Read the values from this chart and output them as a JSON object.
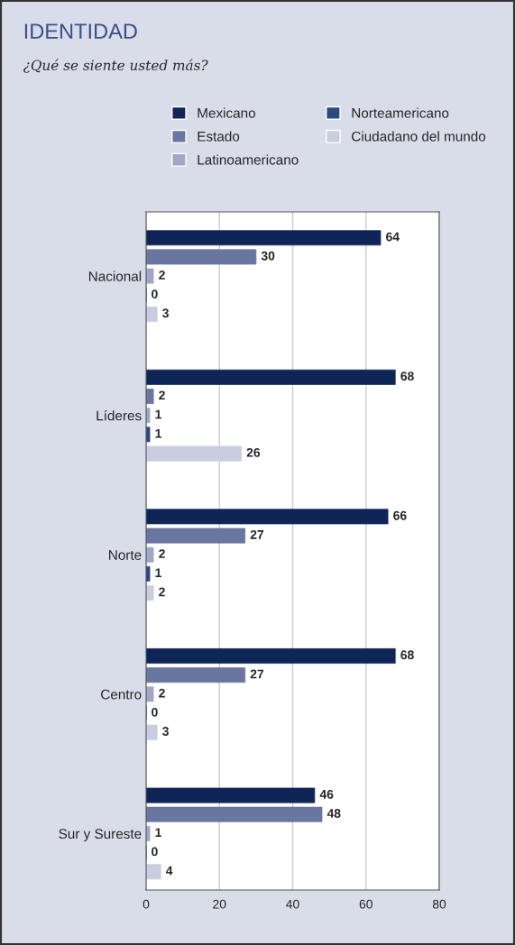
{
  "chart_data": {
    "type": "bar",
    "orientation": "horizontal",
    "title": "IDENTIDAD",
    "subtitle": "¿Qué se siente usted más?",
    "categories": [
      "Nacional",
      "Líderes",
      "Norte",
      "Centro",
      "Sur y Sureste"
    ],
    "series": [
      {
        "name": "Mexicano",
        "color": "#0f2557",
        "values": [
          64,
          68,
          66,
          68,
          46
        ]
      },
      {
        "name": "Estado",
        "color": "#6876a0",
        "values": [
          30,
          2,
          27,
          27,
          48
        ]
      },
      {
        "name": "Latinoamericano",
        "color": "#9fa8c8",
        "values": [
          2,
          1,
          2,
          2,
          1
        ]
      },
      {
        "name": "Norteamericano",
        "color": "#2d4a80",
        "values": [
          0,
          1,
          1,
          0,
          0
        ]
      },
      {
        "name": "Ciudadano del mundo",
        "color": "#c8cddf",
        "values": [
          3,
          26,
          2,
          3,
          4
        ]
      }
    ],
    "xlim": [
      0,
      80
    ],
    "xticks": [
      0,
      20,
      40,
      60,
      80
    ],
    "grid": "x",
    "legend": "top",
    "data_labels": true
  }
}
